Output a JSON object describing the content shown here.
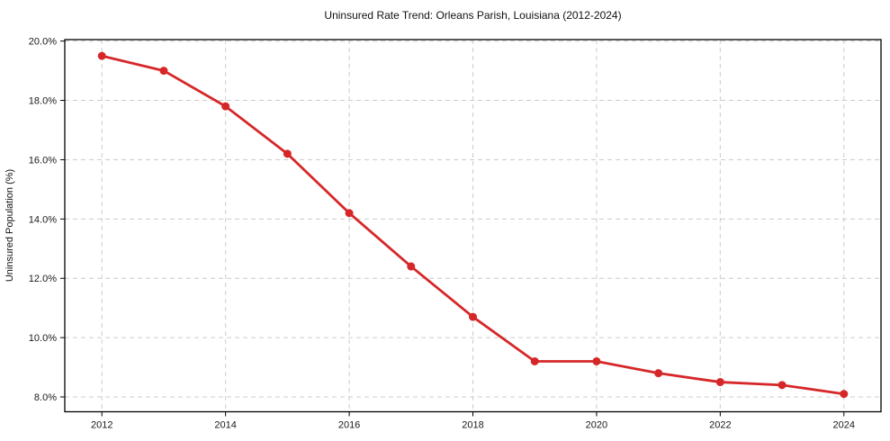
{
  "chart_data": {
    "type": "line",
    "title": "Uninsured Rate Trend: Orleans Parish, Louisiana (2012-2024)",
    "xlabel": "",
    "ylabel": "Uninsured Population (%)",
    "x": [
      2012,
      2013,
      2014,
      2015,
      2016,
      2017,
      2018,
      2019,
      2020,
      2021,
      2022,
      2023,
      2024
    ],
    "values": [
      19.5,
      19.0,
      17.8,
      16.2,
      14.2,
      12.4,
      10.7,
      9.2,
      9.2,
      8.8,
      8.5,
      8.4,
      8.1
    ],
    "xlim": [
      2011.4,
      2024.6
    ],
    "ylim": [
      7.5,
      20.05
    ],
    "x_ticks": [
      2012,
      2014,
      2016,
      2018,
      2020,
      2022,
      2024
    ],
    "x_tick_labels": [
      "2012",
      "2014",
      "2016",
      "2018",
      "2020",
      "2022",
      "2024"
    ],
    "y_ticks": [
      8,
      10,
      12,
      14,
      16,
      18,
      20
    ],
    "y_tick_labels": [
      "8.0%",
      "10.0%",
      "12.0%",
      "14.0%",
      "16.0%",
      "18.0%",
      "20.0%"
    ],
    "grid": true,
    "legend": "none",
    "line_color": "#d62728",
    "marker_color": "#d62728",
    "background": "#ffffff"
  }
}
